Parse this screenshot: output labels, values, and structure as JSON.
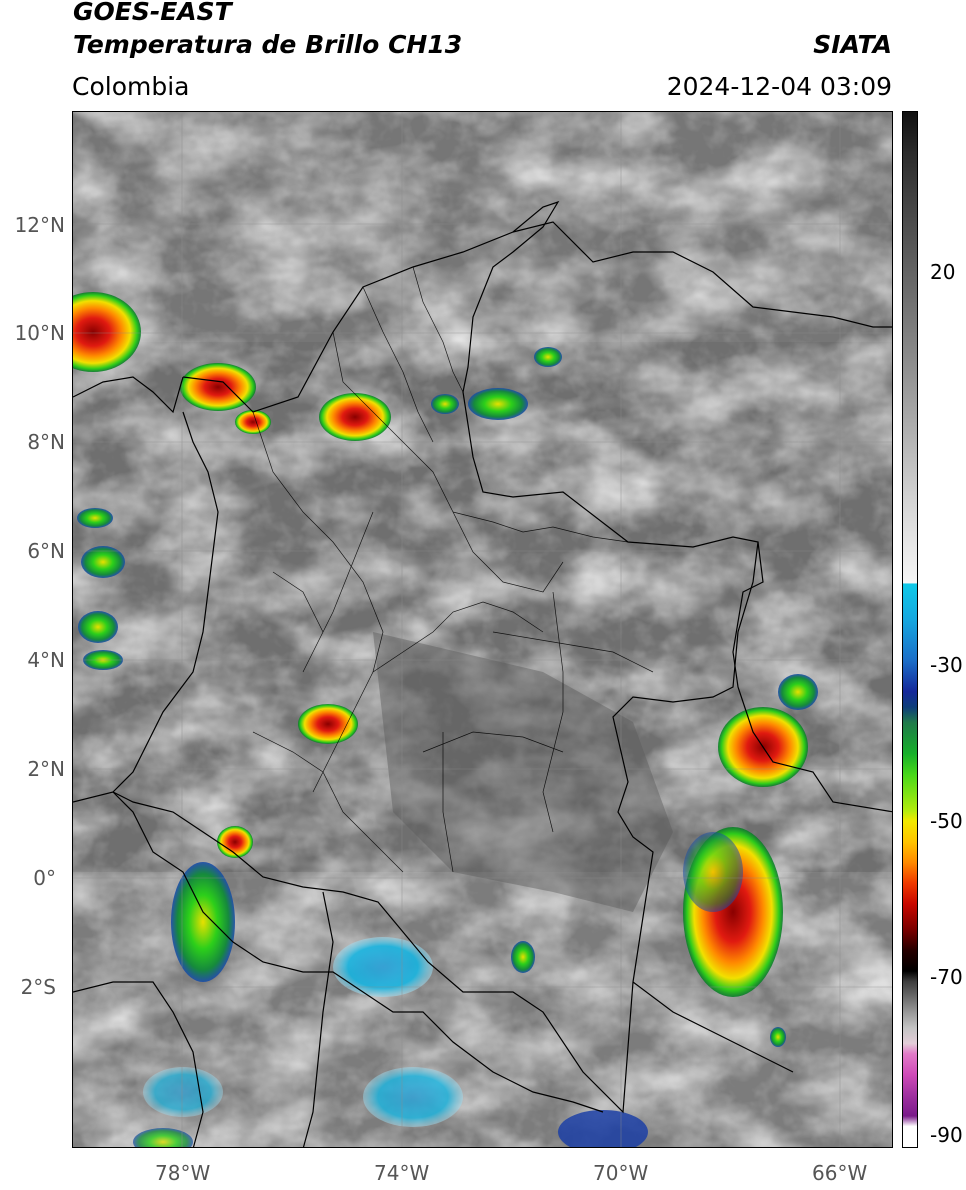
{
  "header": {
    "satellite": "GOES-EAST",
    "product": "Temperatura de Brillo CH13",
    "region": "Colombia",
    "org": "SIATA",
    "datetime": "2024-12-04 03:09"
  },
  "axes": {
    "lat_labels": [
      "12°N",
      "10°N",
      "8°N",
      "6°N",
      "4°N",
      "2°N",
      "0°",
      "2°S"
    ],
    "lon_labels": [
      "78°W",
      "74°W",
      "70°W",
      "66°W"
    ]
  },
  "colorbar": {
    "tick_labels": [
      "20",
      "-30",
      "-50",
      "-70",
      "-90"
    ]
  },
  "colors": {
    "background_gray": "#6e6e6e",
    "border": "#000000"
  }
}
